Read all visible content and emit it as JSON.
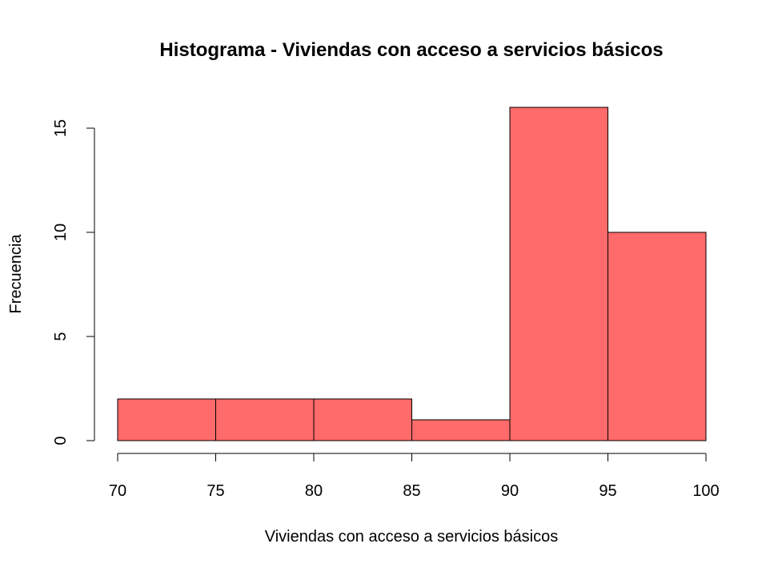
{
  "chart_data": {
    "type": "bar",
    "title": "Histograma - Viviendas con acceso a servicios básicos",
    "xlabel": "Viviendas con acceso a servicios básicos",
    "ylabel": "Frecuencia",
    "bins": [
      {
        "from": 70,
        "to": 75,
        "count": 2
      },
      {
        "from": 75,
        "to": 80,
        "count": 2
      },
      {
        "from": 80,
        "to": 85,
        "count": 2
      },
      {
        "from": 85,
        "to": 90,
        "count": 1
      },
      {
        "from": 90,
        "to": 95,
        "count": 16
      },
      {
        "from": 95,
        "to": 100,
        "count": 10
      }
    ],
    "x_ticks": [
      70,
      75,
      80,
      85,
      90,
      95,
      100
    ],
    "y_ticks": [
      0,
      5,
      10,
      15
    ],
    "xlim": [
      70,
      100
    ],
    "ylim": [
      0,
      16
    ],
    "bar_color": "#FF6A6A",
    "grid": false,
    "legend": "none"
  }
}
